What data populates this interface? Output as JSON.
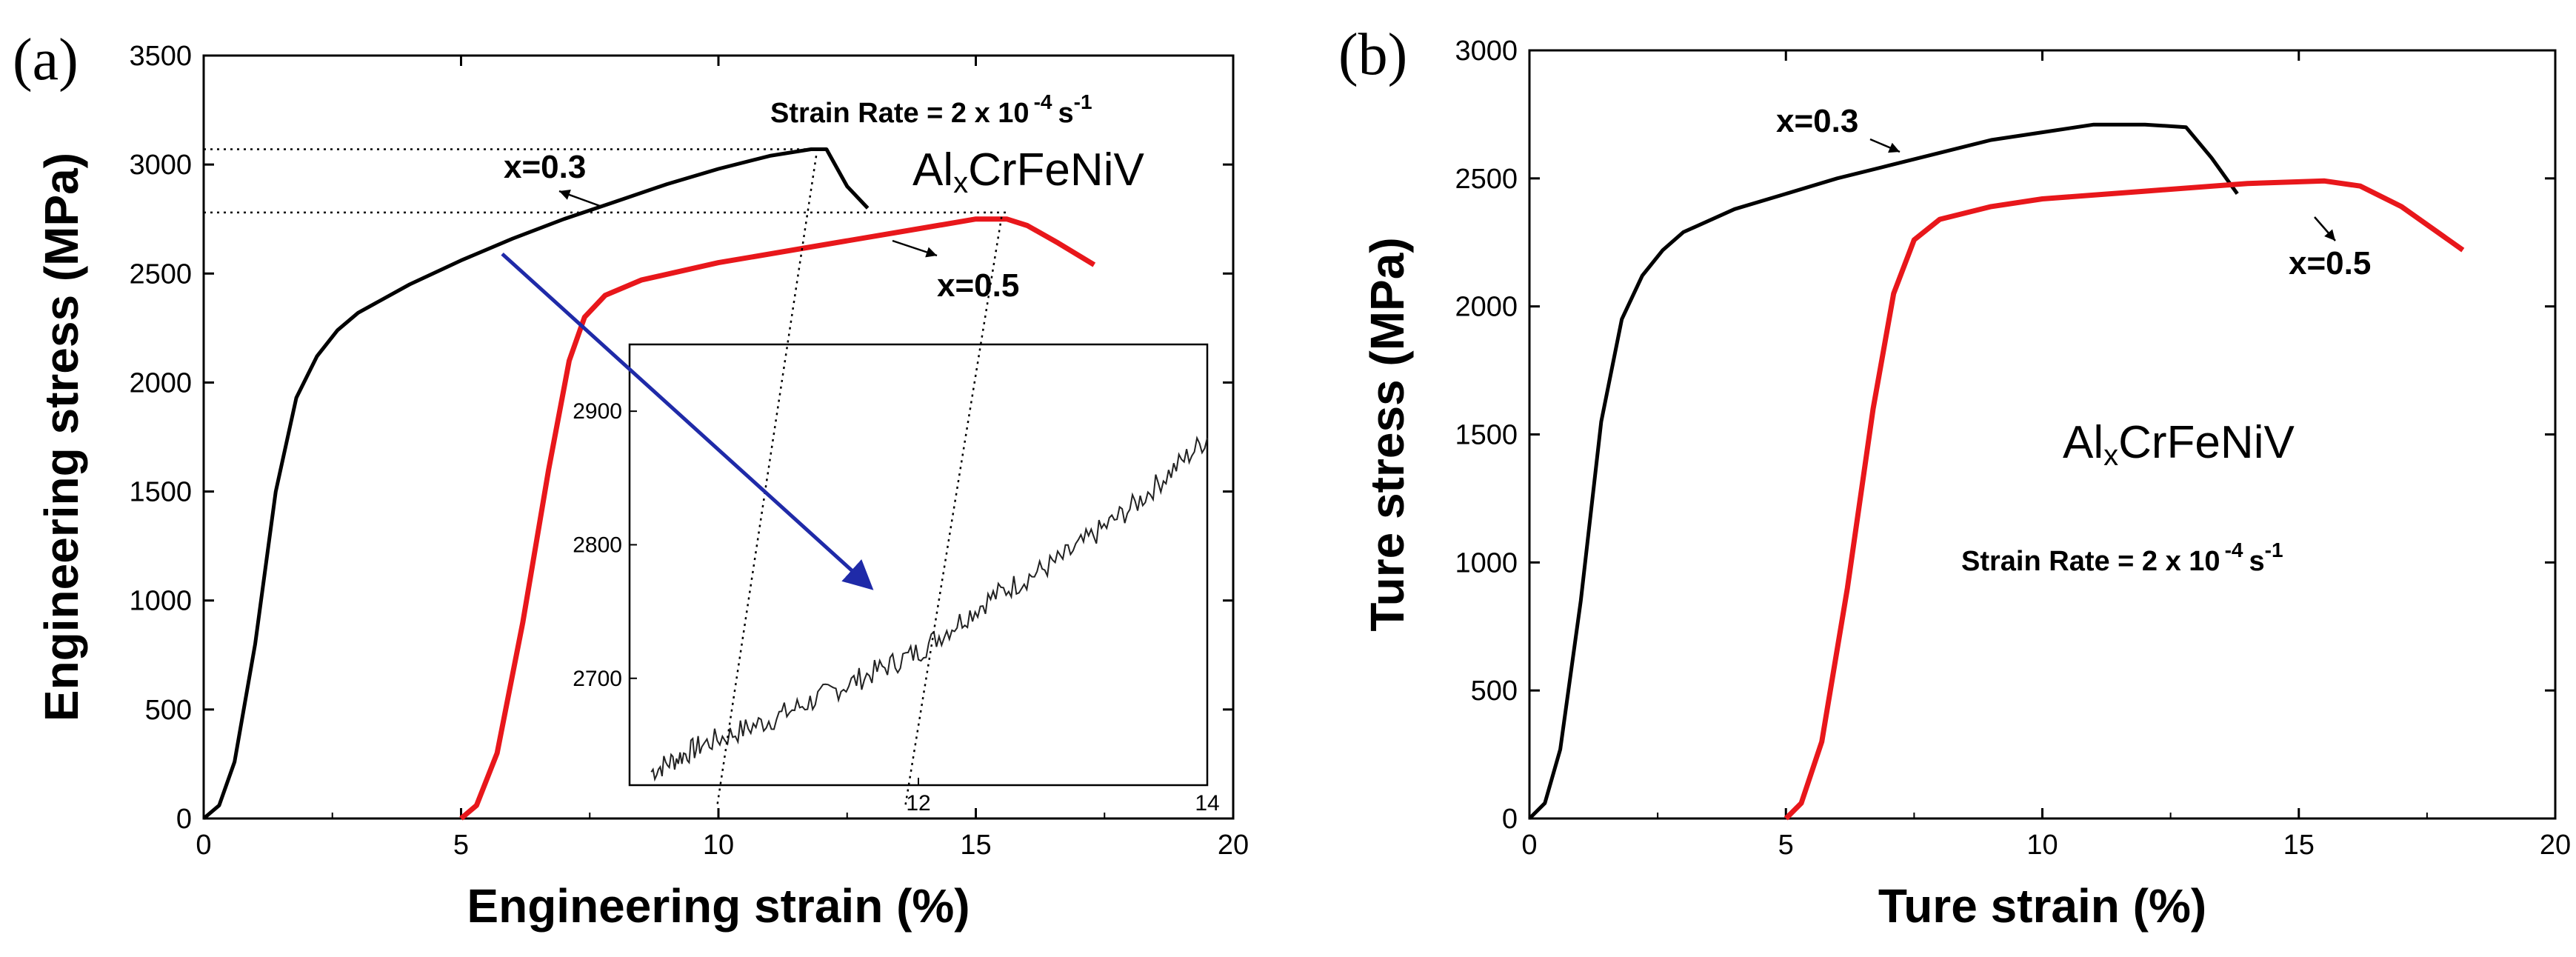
{
  "chart_data": [
    {
      "panel": "(a)",
      "type": "line",
      "xlabel": "Engineering strain (%)",
      "ylabel": "Engineering stress (MPa)",
      "xlim": [
        0,
        20
      ],
      "ylim": [
        0,
        3500
      ],
      "xticks": [
        "0",
        "5",
        "10",
        "15",
        "20"
      ],
      "yticks": [
        "0",
        "500",
        "1000",
        "1500",
        "2000",
        "2500",
        "3000",
        "3500"
      ],
      "annotation_rate": "Strain Rate = 2 x 10",
      "annotation_rate_exp": "-4",
      "annotation_rate_unit": "s",
      "annotation_rate_unit_exp": "-1",
      "alloy_prefix": "Al",
      "alloy_sub": "x",
      "alloy_suffix": "CrFeNiV",
      "series": [
        {
          "name": "x=0.3",
          "color": "#000000",
          "points": [
            [
              0,
              0
            ],
            [
              0.3,
              60
            ],
            [
              0.6,
              260
            ],
            [
              1.0,
              800
            ],
            [
              1.4,
              1500
            ],
            [
              1.8,
              1930
            ],
            [
              2.2,
              2120
            ],
            [
              2.6,
              2240
            ],
            [
              3,
              2320
            ],
            [
              4,
              2450
            ],
            [
              5,
              2560
            ],
            [
              6,
              2660
            ],
            [
              7,
              2750
            ],
            [
              8,
              2830
            ],
            [
              9,
              2910
            ],
            [
              10,
              2980
            ],
            [
              11,
              3040
            ],
            [
              11.8,
              3070
            ],
            [
              12.1,
              3070
            ],
            [
              12.5,
              2900
            ],
            [
              12.9,
              2800
            ]
          ]
        },
        {
          "name": "x=0.5",
          "color": "#e8171b",
          "points": [
            [
              5,
              0
            ],
            [
              5.3,
              60
            ],
            [
              5.7,
              300
            ],
            [
              6.2,
              900
            ],
            [
              6.7,
              1600
            ],
            [
              7.1,
              2100
            ],
            [
              7.4,
              2300
            ],
            [
              7.8,
              2400
            ],
            [
              8.5,
              2470
            ],
            [
              10,
              2550
            ],
            [
              12,
              2630
            ],
            [
              14,
              2710
            ],
            [
              15,
              2750
            ],
            [
              15.6,
              2750
            ],
            [
              16,
              2720
            ],
            [
              16.6,
              2640
            ],
            [
              17.3,
              2540
            ]
          ]
        }
      ],
      "inset": {
        "xlim": [
          10,
          14
        ],
        "ylim": [
          2620,
          2950
        ],
        "xticks": [
          "12",
          "14"
        ],
        "yticks": [
          "2700",
          "2800",
          "2900"
        ],
        "points": [
          [
            10.15,
            2630
          ],
          [
            10.5,
            2650
          ],
          [
            11,
            2670
          ],
          [
            11.5,
            2695
          ],
          [
            12,
            2720
          ],
          [
            12.5,
            2760
          ],
          [
            13,
            2790
          ],
          [
            13.5,
            2830
          ],
          [
            14,
            2880
          ]
        ]
      }
    },
    {
      "panel": "(b)",
      "type": "line",
      "xlabel": "Ture strain (%)",
      "ylabel": "Ture stress (MPa)",
      "xlim": [
        0,
        20
      ],
      "ylim": [
        0,
        3000
      ],
      "xticks": [
        "0",
        "5",
        "10",
        "15",
        "20"
      ],
      "yticks": [
        "0",
        "500",
        "1000",
        "1500",
        "2000",
        "2500",
        "3000"
      ],
      "annotation_rate": "Strain Rate = 2 x 10",
      "annotation_rate_exp": "-4",
      "annotation_rate_unit": "s",
      "annotation_rate_unit_exp": "-1",
      "alloy_prefix": "Al",
      "alloy_sub": "x",
      "alloy_suffix": "CrFeNiV",
      "series": [
        {
          "name": "x=0.3",
          "color": "#000000",
          "points": [
            [
              0,
              0
            ],
            [
              0.3,
              60
            ],
            [
              0.6,
              270
            ],
            [
              1.0,
              850
            ],
            [
              1.4,
              1550
            ],
            [
              1.8,
              1950
            ],
            [
              2.2,
              2120
            ],
            [
              2.6,
              2220
            ],
            [
              3,
              2290
            ],
            [
              4,
              2380
            ],
            [
              5,
              2440
            ],
            [
              6,
              2500
            ],
            [
              7,
              2550
            ],
            [
              8,
              2600
            ],
            [
              9,
              2650
            ],
            [
              10,
              2680
            ],
            [
              11,
              2710
            ],
            [
              12,
              2710
            ],
            [
              12.8,
              2700
            ],
            [
              13.3,
              2580
            ],
            [
              13.8,
              2440
            ]
          ]
        },
        {
          "name": "x=0.5",
          "color": "#e8171b",
          "points": [
            [
              5,
              0
            ],
            [
              5.3,
              60
            ],
            [
              5.7,
              300
            ],
            [
              6.2,
              900
            ],
            [
              6.7,
              1600
            ],
            [
              7.1,
              2050
            ],
            [
              7.5,
              2260
            ],
            [
              8,
              2340
            ],
            [
              9,
              2390
            ],
            [
              10,
              2420
            ],
            [
              12,
              2450
            ],
            [
              14,
              2480
            ],
            [
              15.5,
              2490
            ],
            [
              16.2,
              2470
            ],
            [
              17,
              2390
            ],
            [
              18.2,
              2220
            ]
          ]
        }
      ]
    }
  ]
}
